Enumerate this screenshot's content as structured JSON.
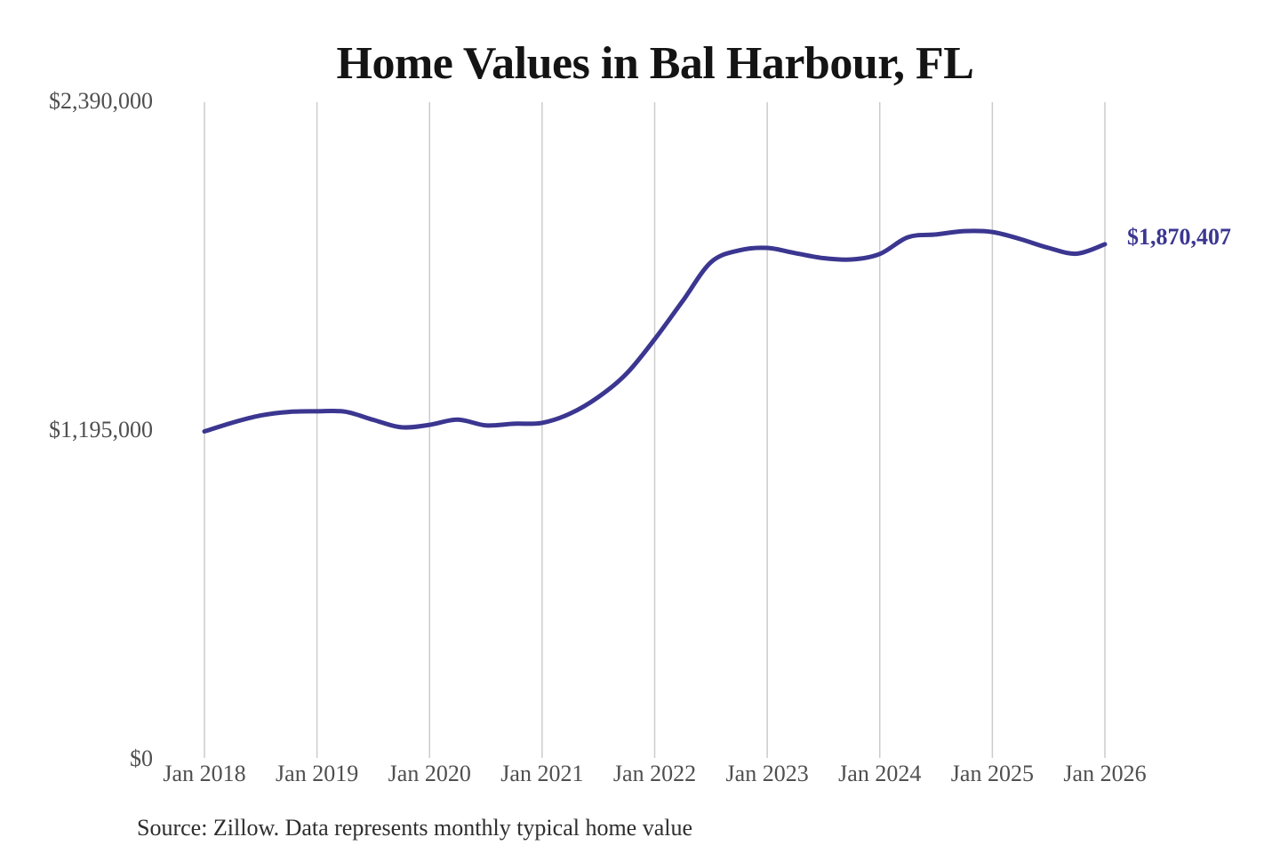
{
  "title": "Home Values in Bal Harbour, FL",
  "source_note": "Source: Zillow. Data represents monthly typical home value",
  "end_label": "$1,870,407",
  "chart_data": {
    "type": "line",
    "title": "Home Values in Bal Harbour, FL",
    "series_name": "Typical home value (USD)",
    "x": [
      "Jan 2018",
      "Apr 2018",
      "Jul 2018",
      "Oct 2018",
      "Jan 2019",
      "Apr 2019",
      "Jul 2019",
      "Oct 2019",
      "Jan 2020",
      "Apr 2020",
      "Jul 2020",
      "Oct 2020",
      "Jan 2021",
      "Apr 2021",
      "Jul 2021",
      "Oct 2021",
      "Jan 2022",
      "Apr 2022",
      "Jul 2022",
      "Oct 2022",
      "Jan 2023",
      "Apr 2023",
      "Jul 2023",
      "Oct 2023",
      "Jan 2024",
      "Apr 2024",
      "Jul 2024",
      "Oct 2024",
      "Jan 2025",
      "Apr 2025",
      "Jul 2025",
      "Oct 2025",
      "Jan 2026"
    ],
    "values": [
      1190000,
      1222000,
      1248000,
      1261000,
      1263000,
      1262000,
      1232000,
      1205000,
      1214000,
      1233000,
      1212000,
      1218000,
      1221000,
      1255000,
      1315000,
      1400000,
      1525000,
      1665000,
      1805000,
      1848000,
      1857000,
      1838000,
      1820000,
      1815000,
      1835000,
      1896000,
      1906000,
      1918000,
      1915000,
      1889000,
      1857000,
      1836000,
      1870407
    ],
    "end_value": 1870407,
    "end_value_label": "$1,870,407",
    "x_tick_labels": [
      "Jan 2018",
      "Jan 2019",
      "Jan 2020",
      "Jan 2021",
      "Jan 2022",
      "Jan 2023",
      "Jan 2024",
      "Jan 2025",
      "Jan 2026"
    ],
    "y_ticks": [
      {
        "value": 0,
        "label": "$0"
      },
      {
        "value": 1195000,
        "label": "$1,195,000"
      },
      {
        "value": 2390000,
        "label": "$2,390,000"
      }
    ],
    "ylim": [
      0,
      2390000
    ],
    "xlabel": "",
    "ylabel": "",
    "grid": "vertical-only",
    "legend": "none",
    "line_color": "#3b3690",
    "grid_color": "#cccccc",
    "label_color": "#4f4f4f",
    "title_color": "#141414",
    "source_color": "#2e2e2e",
    "background": "#ffffff"
  }
}
